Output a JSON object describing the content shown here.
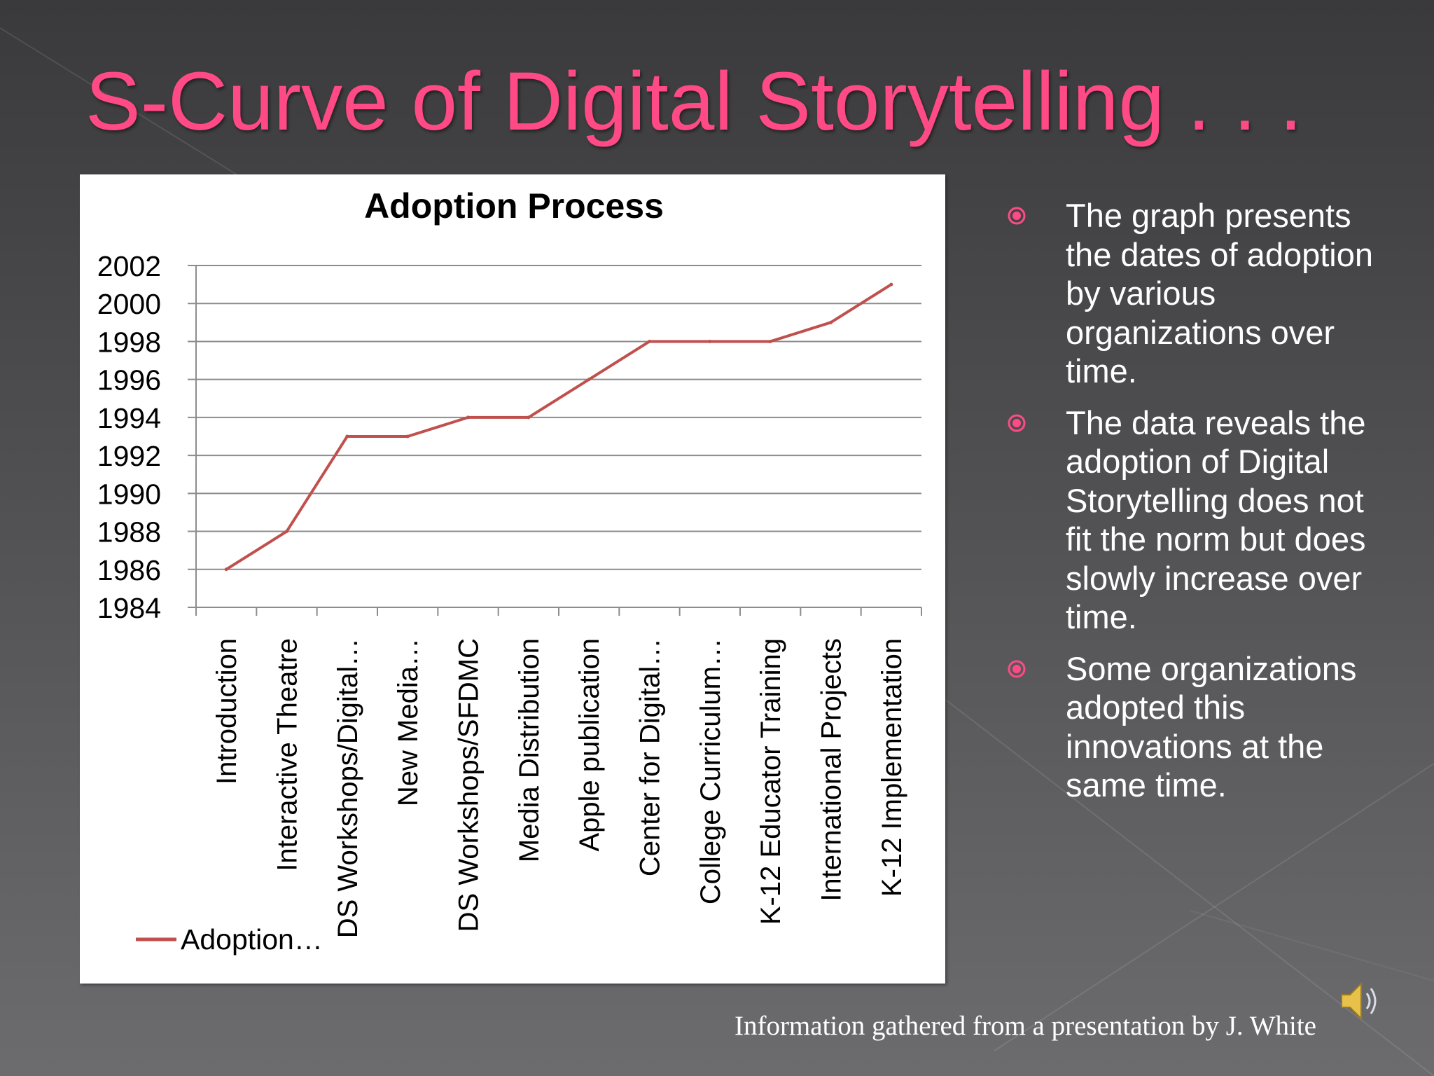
{
  "slide": {
    "title": "S-Curve of Digital Storytelling . . .",
    "footer": "Information gathered from a presentation by J. White",
    "accent_color": "#ff4a86",
    "bullet_icon": "radio-bullet-icon",
    "audio_icon": "speaker-icon"
  },
  "bullets": [
    "The graph presents the dates of adoption by various organizations over time.",
    "The data reveals the adoption of Digital Storytelling does not fit the norm but does slowly increase over time.",
    "Some organizations adopted this innovations at the same time."
  ],
  "chart_data": {
    "type": "line",
    "title": "Adoption Process",
    "xlabel": "",
    "ylabel": "",
    "categories": [
      "Introduction",
      "Interactive Theatre",
      "DS Workshops/Digital…",
      "New Media…",
      "DS Workshops/SFDMC",
      "Media Distribution",
      "Apple publication",
      "Center for Digital…",
      "College Curriculum…",
      "K-12 Educator Training",
      "International Projects",
      "K-12 Implementation"
    ],
    "series": [
      {
        "name": "Adoption…",
        "color": "#c0504d",
        "values": [
          1986,
          1988,
          1993,
          1993,
          1994,
          1994,
          1996,
          1998,
          1998,
          1998,
          1999,
          2001
        ]
      }
    ],
    "ylim": [
      1984,
      2002
    ],
    "yticks": [
      "1984",
      "1986",
      "1988",
      "1990",
      "1992",
      "1994",
      "1996",
      "1998",
      "2000",
      "2002"
    ],
    "grid": true,
    "legend": "bottom-left"
  }
}
